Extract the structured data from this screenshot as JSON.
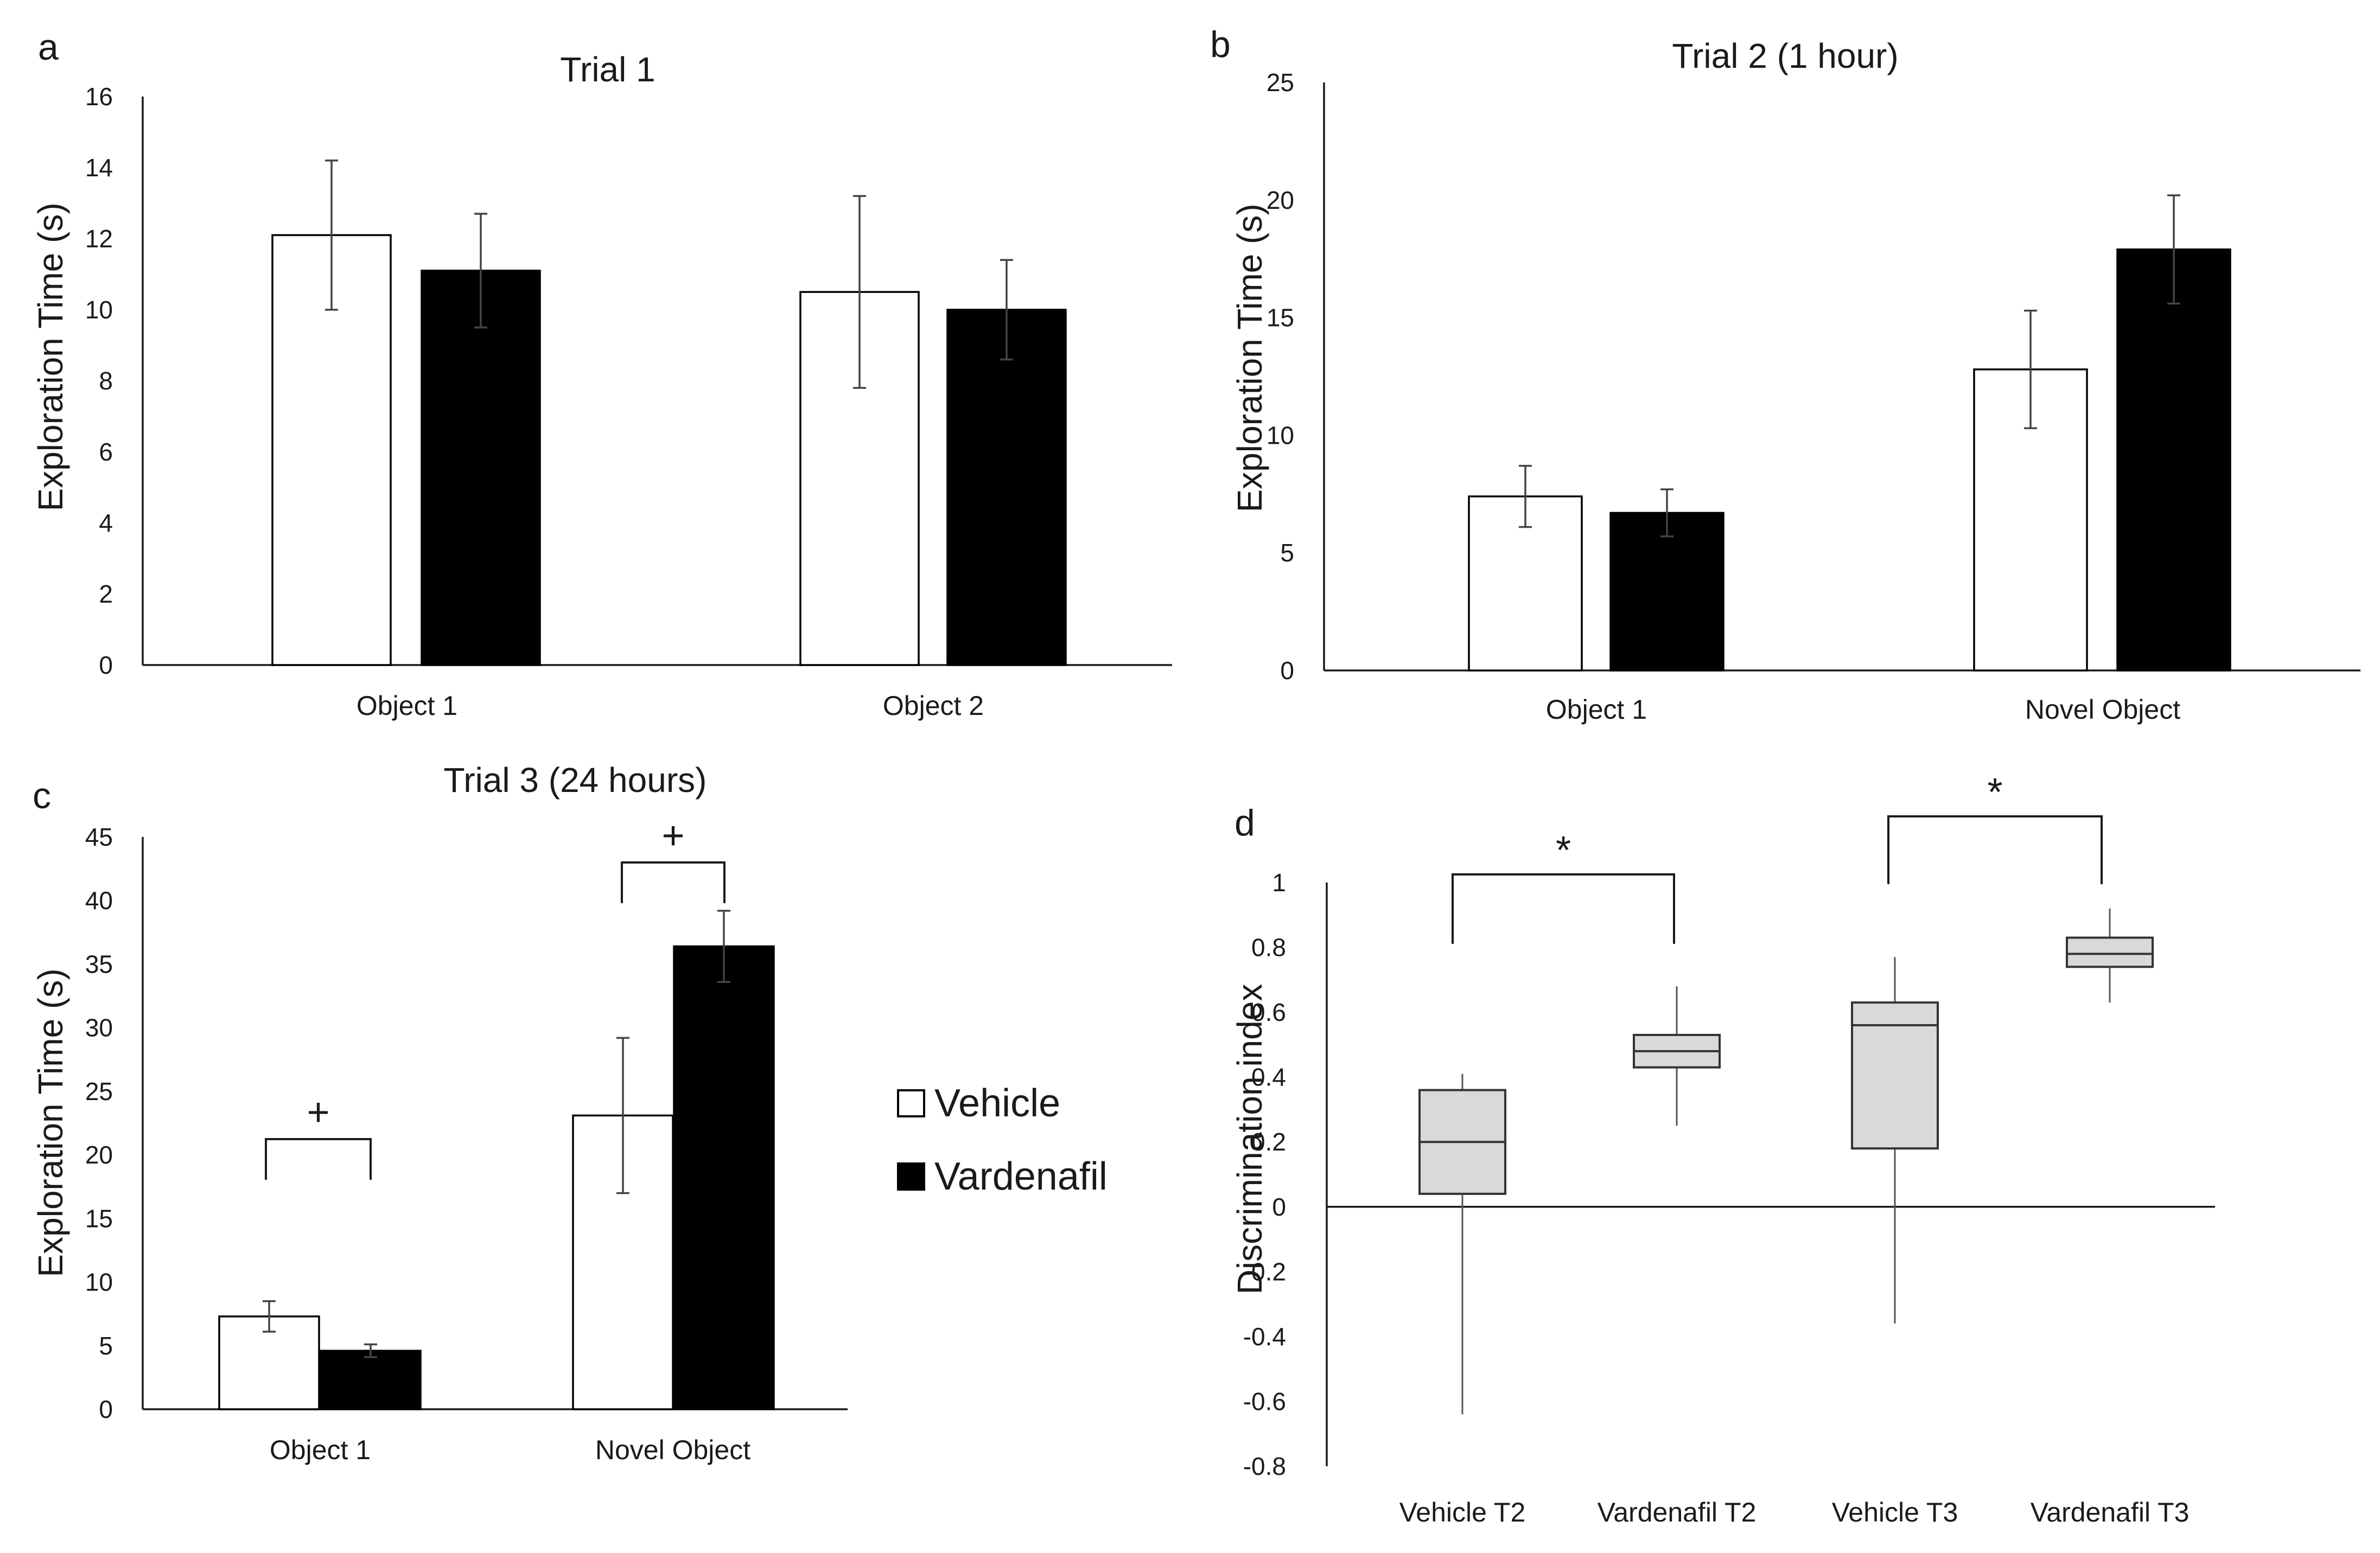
{
  "colors": {
    "vehicle_fill": "#ffffff",
    "vardenafil_fill": "#000000",
    "box_fill": "#d9d9d9",
    "axis": "#1a1a1a"
  },
  "legend": {
    "position": "right of panel c",
    "entries": [
      {
        "label": "Vehicle",
        "fill": "#ffffff"
      },
      {
        "label": "Vardenafil",
        "fill": "#000000"
      }
    ]
  },
  "chart_data": [
    {
      "panel_label": "a",
      "type": "bar",
      "title": "Trial 1",
      "ylabel": "Exploration Time (s)",
      "ylim": [
        0,
        16
      ],
      "yticks": [
        "0",
        "2",
        "4",
        "6",
        "8",
        "10",
        "12",
        "14",
        "16"
      ],
      "categories": [
        "Object 1",
        "Object 2"
      ],
      "series": [
        {
          "name": "Vehicle",
          "values": [
            12.1,
            10.5
          ],
          "errors": [
            2.1,
            2.7
          ]
        },
        {
          "name": "Vardenafil",
          "values": [
            11.1,
            10.0
          ],
          "errors": [
            1.6,
            1.4
          ]
        }
      ],
      "grid": false
    },
    {
      "panel_label": "b",
      "type": "bar",
      "title": "Trial 2 (1 hour)",
      "ylabel": "Exploration Time (s)",
      "ylim": [
        0,
        25
      ],
      "yticks": [
        "0",
        "5",
        "10",
        "15",
        "20",
        "25"
      ],
      "categories": [
        "Object 1",
        "Novel Object"
      ],
      "series": [
        {
          "name": "Vehicle",
          "values": [
            7.4,
            12.8
          ],
          "errors": [
            1.3,
            2.5
          ]
        },
        {
          "name": "Vardenafil",
          "values": [
            6.7,
            17.9
          ],
          "errors": [
            1.0,
            2.3
          ]
        }
      ],
      "grid": false
    },
    {
      "panel_label": "c",
      "type": "bar",
      "title": "Trial 3 (24 hours)",
      "ylabel": "Exploration Time (s)",
      "ylim": [
        0,
        45
      ],
      "yticks": [
        "0",
        "5",
        "10",
        "15",
        "20",
        "25",
        "30",
        "35",
        "40",
        "45"
      ],
      "categories": [
        "Object 1",
        "Novel Object"
      ],
      "series": [
        {
          "name": "Vehicle",
          "values": [
            7.3,
            23.1
          ],
          "errors": [
            1.2,
            6.1
          ]
        },
        {
          "name": "Vardenafil",
          "values": [
            4.6,
            36.4
          ],
          "errors": [
            0.5,
            2.8
          ]
        }
      ],
      "annotations": [
        {
          "text": "+",
          "between": "Object 1"
        },
        {
          "text": "+",
          "between": "Novel Object"
        }
      ],
      "grid": false
    },
    {
      "panel_label": "d",
      "type": "box",
      "ylabel": "Discrimination index",
      "ylim": [
        -0.8,
        1
      ],
      "yticks": [
        "1",
        "0.8",
        "0.6",
        "0.4",
        "0.2",
        "0",
        "-0.2",
        "-0.4",
        "-0.6",
        "-0.8"
      ],
      "categories": [
        "Vehicle T2",
        "Vardenafil T2",
        "Vehicle T3",
        "Vardenafil T3"
      ],
      "boxes": [
        {
          "min": -0.64,
          "q1": 0.04,
          "median": 0.2,
          "q3": 0.36,
          "max": 0.41
        },
        {
          "min": 0.25,
          "q1": 0.43,
          "median": 0.48,
          "q3": 0.53,
          "max": 0.68
        },
        {
          "min": -0.36,
          "q1": 0.18,
          "median": 0.56,
          "q3": 0.63,
          "max": 0.77
        },
        {
          "min": 0.63,
          "q1": 0.74,
          "median": 0.78,
          "q3": 0.83,
          "max": 0.92
        }
      ],
      "annotations": [
        {
          "text": "*",
          "pair": [
            "Vehicle T2",
            "Vardenafil T2"
          ]
        },
        {
          "text": "*",
          "pair": [
            "Vehicle T3",
            "Vardenafil T3"
          ]
        }
      ],
      "grid": false
    }
  ]
}
